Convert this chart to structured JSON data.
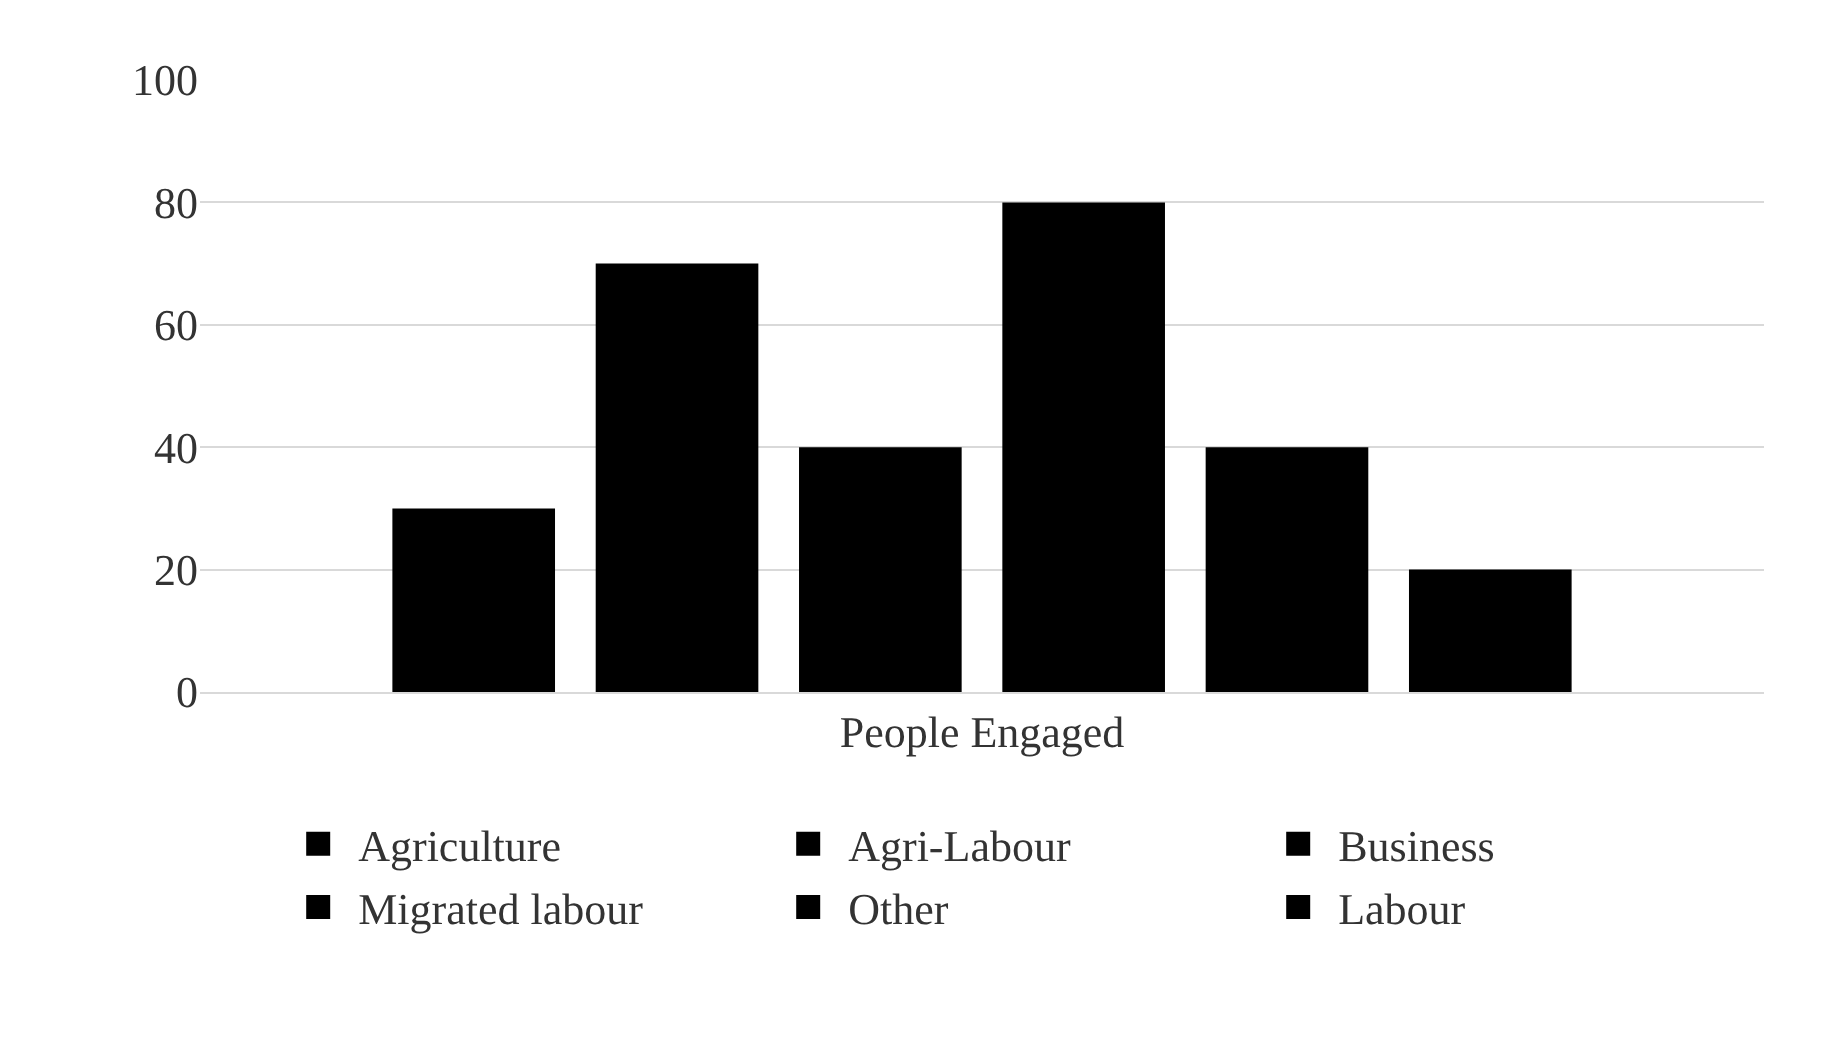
{
  "chart_data": {
    "type": "bar",
    "categories": [
      "People Engaged"
    ],
    "series": [
      {
        "name": "Agriculture",
        "color": "#000000",
        "values": [
          30
        ]
      },
      {
        "name": "Agri-Labour",
        "color": "#000000",
        "values": [
          70
        ]
      },
      {
        "name": "Business",
        "color": "#000000",
        "values": [
          40
        ]
      },
      {
        "name": "Migrated labour",
        "color": "#000000",
        "values": [
          80
        ]
      },
      {
        "name": "Other",
        "color": "#000000",
        "values": [
          40
        ]
      },
      {
        "name": "Labour",
        "color": "#000000",
        "values": [
          20
        ]
      }
    ],
    "ylim": [
      0,
      100
    ],
    "yticks": [
      0,
      20,
      40,
      60,
      80,
      100
    ],
    "grid": "y",
    "legend": "bottom"
  }
}
